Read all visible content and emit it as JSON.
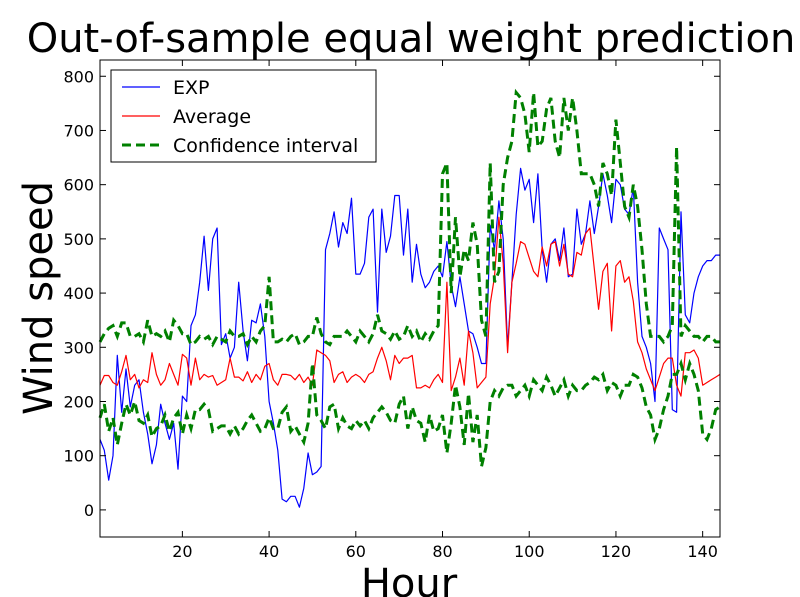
{
  "chart_data": {
    "type": "line",
    "title": "Out-of-sample equal weight prediction",
    "xlabel": "Hour",
    "ylabel": "Wind speed",
    "xlim": [
      1,
      144
    ],
    "ylim": [
      -50,
      830
    ],
    "xticks": [
      20,
      40,
      60,
      80,
      100,
      120,
      140
    ],
    "yticks": [
      0,
      100,
      200,
      300,
      400,
      500,
      600,
      700,
      800
    ],
    "grid": false,
    "legend_position": "top-left",
    "x": [
      1,
      2,
      3,
      4,
      5,
      6,
      7,
      8,
      9,
      10,
      11,
      12,
      13,
      14,
      15,
      16,
      17,
      18,
      19,
      20,
      21,
      22,
      23,
      24,
      25,
      26,
      27,
      28,
      29,
      30,
      31,
      32,
      33,
      34,
      35,
      36,
      37,
      38,
      39,
      40,
      41,
      42,
      43,
      44,
      45,
      46,
      47,
      48,
      49,
      50,
      51,
      52,
      53,
      54,
      55,
      56,
      57,
      58,
      59,
      60,
      61,
      62,
      63,
      64,
      65,
      66,
      67,
      68,
      69,
      70,
      71,
      72,
      73,
      74,
      75,
      76,
      77,
      78,
      79,
      80,
      81,
      82,
      83,
      84,
      85,
      86,
      87,
      88,
      89,
      90,
      91,
      92,
      93,
      94,
      95,
      96,
      97,
      98,
      99,
      100,
      101,
      102,
      103,
      104,
      105,
      106,
      107,
      108,
      109,
      110,
      111,
      112,
      113,
      114,
      115,
      116,
      117,
      118,
      119,
      120,
      121,
      122,
      123,
      124,
      125,
      126,
      127,
      128,
      129,
      130,
      131,
      132,
      133,
      134,
      135,
      136,
      137,
      138,
      139,
      140,
      141,
      142,
      143,
      144
    ],
    "series": [
      {
        "name": "EXP",
        "color": "#0000ff",
        "style": "solid",
        "values": [
          130,
          110,
          55,
          100,
          285,
          180,
          260,
          190,
          230,
          240,
          180,
          140,
          85,
          120,
          195,
          160,
          130,
          160,
          75,
          210,
          200,
          340,
          360,
          420,
          505,
          405,
          500,
          520,
          305,
          325,
          280,
          300,
          420,
          330,
          275,
          350,
          345,
          380,
          320,
          200,
          160,
          110,
          20,
          15,
          25,
          25,
          5,
          40,
          105,
          65,
          70,
          80,
          480,
          510,
          550,
          485,
          530,
          510,
          575,
          435,
          435,
          455,
          540,
          555,
          365,
          555,
          475,
          505,
          580,
          580,
          470,
          555,
          420,
          490,
          435,
          410,
          420,
          440,
          450,
          430,
          495,
          415,
          375,
          430,
          380,
          330,
          325,
          300,
          270,
          270,
          525,
          480,
          570,
          500,
          300,
          420,
          545,
          630,
          590,
          610,
          530,
          620,
          480,
          420,
          490,
          500,
          460,
          520,
          430,
          435,
          555,
          490,
          510,
          570,
          510,
          560,
          620,
          580,
          530,
          610,
          600,
          555,
          545,
          595,
          420,
          320,
          300,
          270,
          200,
          520,
          500,
          480,
          185,
          180,
          550,
          360,
          345,
          400,
          430,
          450,
          460,
          460,
          470,
          470
        ]
      },
      {
        "name": "Average",
        "color": "#ff0000",
        "style": "solid",
        "values": [
          230,
          248,
          248,
          235,
          230,
          255,
          285,
          240,
          250,
          225,
          240,
          235,
          290,
          250,
          230,
          240,
          270,
          250,
          230,
          287,
          280,
          230,
          280,
          240,
          250,
          245,
          248,
          230,
          235,
          240,
          280,
          245,
          245,
          238,
          255,
          235,
          250,
          240,
          265,
          270,
          240,
          230,
          250,
          250,
          248,
          240,
          250,
          235,
          245,
          230,
          295,
          290,
          285,
          275,
          235,
          250,
          255,
          235,
          245,
          250,
          245,
          235,
          250,
          255,
          280,
          300,
          275,
          240,
          285,
          270,
          280,
          280,
          285,
          225,
          225,
          230,
          225,
          240,
          250,
          235,
          420,
          220,
          245,
          280,
          230,
          330,
          290,
          225,
          235,
          245,
          380,
          430,
          540,
          455,
          290,
          420,
          455,
          495,
          490,
          465,
          440,
          430,
          485,
          450,
          490,
          495,
          450,
          490,
          435,
          430,
          475,
          470,
          510,
          520,
          445,
          370,
          440,
          455,
          330,
          450,
          460,
          420,
          430,
          385,
          310,
          290,
          260,
          240,
          220,
          245,
          270,
          280,
          280,
          230,
          210,
          290,
          290,
          295,
          280,
          230,
          235,
          240,
          245,
          250
        ]
      },
      {
        "name": "Confidence interval",
        "color": "#008000",
        "style": "dashed",
        "upper": [
          310,
          325,
          335,
          340,
          320,
          345,
          345,
          320,
          320,
          325,
          310,
          350,
          320,
          325,
          320,
          330,
          310,
          350,
          340,
          325,
          325,
          305,
          310,
          320,
          315,
          320,
          305,
          320,
          315,
          310,
          330,
          320,
          320,
          325,
          305,
          320,
          310,
          330,
          340,
          430,
          310,
          310,
          315,
          310,
          320,
          325,
          305,
          310,
          320,
          320,
          355,
          325,
          310,
          305,
          320,
          320,
          320,
          330,
          320,
          310,
          330,
          320,
          310,
          325,
          360,
          330,
          325,
          315,
          330,
          315,
          320,
          340,
          320,
          330,
          310,
          325,
          315,
          330,
          340,
          620,
          640,
          400,
          540,
          430,
          480,
          460,
          530,
          490,
          350,
          320,
          640,
          420,
          440,
          600,
          650,
          680,
          770,
          760,
          730,
          660,
          770,
          670,
          680,
          740,
          760,
          680,
          650,
          760,
          700,
          760,
          700,
          620,
          620,
          620,
          600,
          560,
          640,
          620,
          580,
          720,
          640,
          560,
          540,
          600,
          560,
          480,
          380,
          320,
          320,
          320,
          310,
          320,
          340,
          670,
          320,
          340,
          330,
          320,
          320,
          310,
          320,
          320,
          310,
          310
        ],
        "lower": [
          170,
          195,
          145,
          170,
          120,
          160,
          195,
          175,
          200,
          165,
          160,
          175,
          135,
          150,
          155,
          175,
          145,
          170,
          180,
          140,
          175,
          150,
          185,
          185,
          195,
          185,
          145,
          150,
          155,
          155,
          140,
          155,
          140,
          150,
          165,
          175,
          160,
          145,
          150,
          170,
          150,
          150,
          180,
          190,
          145,
          155,
          140,
          125,
          160,
          270,
          175,
          165,
          150,
          190,
          195,
          150,
          170,
          155,
          150,
          165,
          155,
          165,
          150,
          170,
          180,
          190,
          180,
          165,
          160,
          195,
          210,
          150,
          190,
          165,
          160,
          125,
          175,
          145,
          150,
          175,
          105,
          160,
          230,
          190,
          120,
          215,
          125,
          175,
          80,
          115,
          200,
          220,
          210,
          225,
          230,
          230,
          210,
          220,
          230,
          210,
          240,
          230,
          220,
          245,
          230,
          210,
          225,
          240,
          210,
          230,
          220,
          220,
          230,
          235,
          245,
          240,
          250,
          220,
          235,
          230,
          210,
          230,
          230,
          250,
          245,
          225,
          190,
          175,
          130,
          150,
          185,
          210,
          250,
          250,
          270,
          240,
          270,
          250,
          220,
          140,
          130,
          150,
          185,
          190
        ]
      }
    ]
  }
}
